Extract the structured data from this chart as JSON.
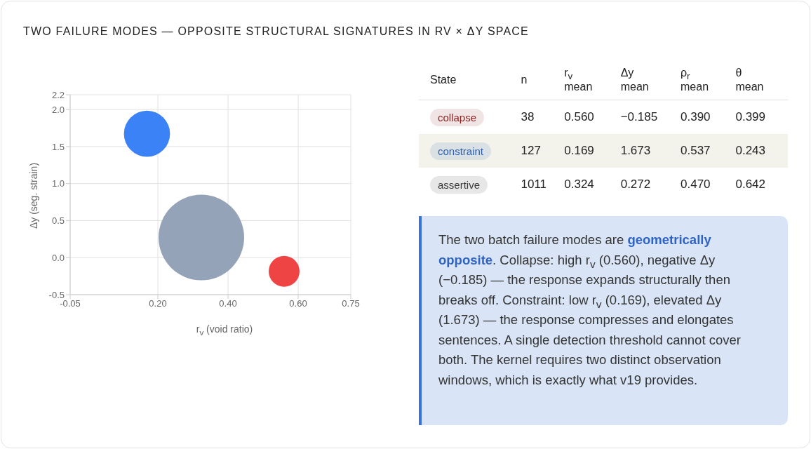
{
  "chart_data": [
    {
      "type": "bubble",
      "title": "TWO FAILURE MODES — OPPOSITE STRUCTURAL SIGNATURES IN RV × ΔY SPACE",
      "xlabel": "r$_{v}$ (void ratio)",
      "ylabel": "Δy (seg. strain)",
      "xlim": [
        -0.05,
        0.75
      ],
      "xticks": [
        {
          "value": -0.05,
          "label": "-0.05"
        },
        {
          "value": 0.2,
          "label": "0.20"
        },
        {
          "value": 0.4,
          "label": "0.40"
        },
        {
          "value": 0.6,
          "label": "0.60"
        },
        {
          "value": 0.75,
          "label": "0.75"
        }
      ],
      "ylim": [
        -0.5,
        2.2
      ],
      "yticks": [
        {
          "value": -0.5,
          "label": "-0.5"
        },
        {
          "value": 0,
          "label": "0.0"
        },
        {
          "value": 0.5,
          "label": "0.5"
        },
        {
          "value": 1,
          "label": "1.0"
        },
        {
          "value": 1.5,
          "label": "1.5"
        },
        {
          "value": 2,
          "label": "2.0"
        },
        {
          "value": 2.2,
          "label": "2.2"
        }
      ],
      "grid": true,
      "legend": false,
      "series": [
        {
          "color": "#ef4444",
          "x": [
            0.56
          ],
          "values": [
            -0.185
          ],
          "sizes": [
            0.13
          ]
        },
        {
          "color": "#3b82f6",
          "x": [
            0.169
          ],
          "values": [
            1.673
          ],
          "sizes": [
            0.29
          ]
        },
        {
          "color": "#94a3b8",
          "x": [
            0.324
          ],
          "values": [
            0.272
          ],
          "sizes": [
            1
          ]
        }
      ]
    },
    {
      "type": "other",
      "xlabel": "State",
      "data_labels": true,
      "categories": [
        "collapse",
        "constraint",
        "assertive"
      ],
      "colors": [
        "#8b2323",
        "#2b5fb4",
        "#3a3a3a"
      ],
      "series": [
        {
          "name": "n",
          "values": [
            38,
            127,
            1011
          ]
        },
        {
          "name": "r$_{v}$ mean",
          "values": [
            0.56,
            0.169,
            0.324
          ],
          "value_labels": [
            "0.560",
            "0.169",
            "0.324"
          ]
        },
        {
          "name": "Δy mean",
          "values": [
            -0.185,
            1.673,
            0.272
          ]
        },
        {
          "name": "ρ$_{r}$ mean",
          "values": [
            0.39,
            0.537,
            0.47
          ],
          "value_labels": [
            "0.390",
            "0.537",
            "0.470"
          ]
        },
        {
          "name": "θ mean",
          "values": [
            0.399,
            0.243,
            0.642
          ]
        }
      ]
    },
    {
      "type": "other",
      "annotations": [
        "The two batch failure modes are ",
        "geometrically opposite",
        ". Collapse: high r$_{v}$ (0.560), negative Δy (−0.185) — the response expands structurally then breaks off. Constraint: low r$_{v}$ (0.169), elevated Δy (1.673) — the response compresses and elongates sentences. A single detection threshold cannot cover both. The kernel requires two distinct observation windows, which is exactly what v19 provides."
      ]
    }
  ]
}
